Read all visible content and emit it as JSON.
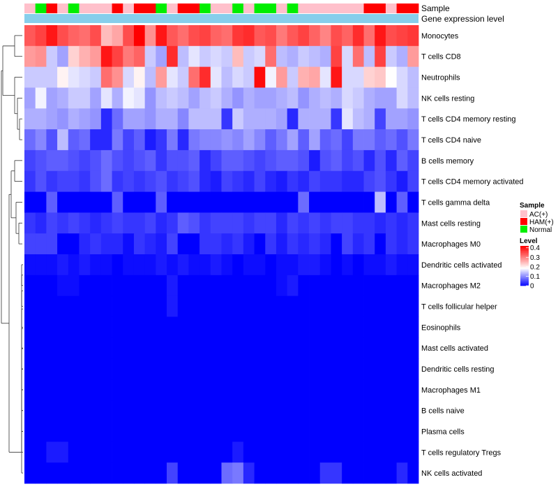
{
  "chart_data": {
    "type": "heatmap",
    "annotation_tracks": [
      {
        "name": "Sample",
        "values": [
          "AC(+)",
          "Normal",
          "HAM(+)",
          "AC(+)",
          "Normal",
          "AC(+)",
          "AC(+)",
          "AC(+)",
          "HAM(+)",
          "AC(+)",
          "HAM(+)",
          "HAM(+)",
          "Normal",
          "AC(+)",
          "HAM(+)",
          "HAM(+)",
          "Normal",
          "AC(+)",
          "AC(+)",
          "Normal",
          "AC(+)",
          "Normal",
          "Normal",
          "AC(+)",
          "Normal",
          "AC(+)",
          "AC(+)",
          "AC(+)",
          "AC(+)",
          "AC(+)",
          "AC(+)",
          "HAM(+)",
          "HAM(+)",
          "AC(+)",
          "HAM(+)",
          "HAM(+)"
        ]
      },
      {
        "name": "Gene expression level",
        "single_value": true
      }
    ],
    "rows": [
      "Monocytes",
      "T cells CD8",
      "Neutrophils",
      "NK cells resting",
      "T cells CD4 memory resting",
      "T cells CD4 naive",
      "B cells memory",
      "T cells CD4 memory activated",
      "T cells gamma delta",
      "Mast cells resting",
      "Macrophages M0",
      "Dendritic cells activated",
      "Macrophages M2",
      "T cells follicular helper",
      "Eosinophils",
      "Mast cells activated",
      "Dendritic cells resting",
      "Macrophages M1",
      "B cells naive",
      "Plasma cells",
      "T cells regulatory  Tregs",
      "NK cells activated"
    ],
    "n_columns": 36,
    "values": [
      [
        0.34,
        0.36,
        0.4,
        0.35,
        0.33,
        0.32,
        0.35,
        0.25,
        0.27,
        0.35,
        0.42,
        0.29,
        0.4,
        0.34,
        0.32,
        0.35,
        0.36,
        0.33,
        0.32,
        0.37,
        0.38,
        0.34,
        0.35,
        0.31,
        0.34,
        0.36,
        0.33,
        0.3,
        0.35,
        0.33,
        0.38,
        0.32,
        0.4,
        0.35,
        0.36,
        0.37
      ],
      [
        0.28,
        0.29,
        0.15,
        0.12,
        0.23,
        0.26,
        0.28,
        0.4,
        0.36,
        0.31,
        0.33,
        0.15,
        0.12,
        0.38,
        0.14,
        0.17,
        0.15,
        0.16,
        0.15,
        0.25,
        0.15,
        0.16,
        0.32,
        0.14,
        0.13,
        0.15,
        0.14,
        0.13,
        0.36,
        0.16,
        0.32,
        0.14,
        0.36,
        0.15,
        0.13,
        0.28
      ],
      [
        0.15,
        0.15,
        0.15,
        0.2,
        0.17,
        0.16,
        0.15,
        0.32,
        0.29,
        0.16,
        0.2,
        0.14,
        0.28,
        0.17,
        0.15,
        0.32,
        0.38,
        0.17,
        0.14,
        0.16,
        0.15,
        0.41,
        0.18,
        0.28,
        0.15,
        0.26,
        0.27,
        0.17,
        0.4,
        0.16,
        0.16,
        0.23,
        0.24,
        0.19,
        0.16,
        0.14
      ],
      [
        0.12,
        0.18,
        0.12,
        0.13,
        0.15,
        0.15,
        0.12,
        0.17,
        0.13,
        0.18,
        0.17,
        0.11,
        0.14,
        0.15,
        0.14,
        0.12,
        0.14,
        0.15,
        0.13,
        0.11,
        0.13,
        0.12,
        0.12,
        0.13,
        0.14,
        0.11,
        0.13,
        0.14,
        0.13,
        0.16,
        0.15,
        0.13,
        0.12,
        0.12,
        0.16,
        0.14
      ],
      [
        0.13,
        0.13,
        0.12,
        0.11,
        0.13,
        0.12,
        0.11,
        0.03,
        0.08,
        0.12,
        0.12,
        0.11,
        0.13,
        0.13,
        0.1,
        0.14,
        0.14,
        0.14,
        0.04,
        0.15,
        0.13,
        0.13,
        0.13,
        0.12,
        0.03,
        0.13,
        0.13,
        0.13,
        0.04,
        0.17,
        0.14,
        0.13,
        0.05,
        0.12,
        0.12,
        0.11
      ],
      [
        0.08,
        0.1,
        0.06,
        0.14,
        0.07,
        0.08,
        0.03,
        0.03,
        0.09,
        0.05,
        0.07,
        0.02,
        0.04,
        0.09,
        0.03,
        0.09,
        0.1,
        0.1,
        0.11,
        0.1,
        0.12,
        0.1,
        0.07,
        0.09,
        0.12,
        0.07,
        0.12,
        0.07,
        0.08,
        0.05,
        0.09,
        0.09,
        0.07,
        0.08,
        0.06,
        0.09
      ],
      [
        0.05,
        0.06,
        0.07,
        0.07,
        0.06,
        0.05,
        0.06,
        0.08,
        0.06,
        0.05,
        0.06,
        0.07,
        0.04,
        0.06,
        0.06,
        0.07,
        0.03,
        0.05,
        0.07,
        0.07,
        0.06,
        0.05,
        0.06,
        0.07,
        0.07,
        0.06,
        0.02,
        0.06,
        0.07,
        0.05,
        0.06,
        0.03,
        0.06,
        0.03,
        0.07,
        0.05
      ],
      [
        0.04,
        0.06,
        0.04,
        0.05,
        0.05,
        0.04,
        0.06,
        0.08,
        0.04,
        0.05,
        0.04,
        0.05,
        0.06,
        0.04,
        0.05,
        0.06,
        0.03,
        0.02,
        0.05,
        0.04,
        0.03,
        0.05,
        0.03,
        0.02,
        0.04,
        0.03,
        0.05,
        0.04,
        0.04,
        0.03,
        0.03,
        0.05,
        0.06,
        0.04,
        0.02,
        0.05
      ],
      [
        0.0,
        0.0,
        0.07,
        0.0,
        0.0,
        0.0,
        0.0,
        0.0,
        0.07,
        0.0,
        0.0,
        0.0,
        0.07,
        0.0,
        0.0,
        0.0,
        0.0,
        0.0,
        0.0,
        0.0,
        0.0,
        0.0,
        0.0,
        0.0,
        0.0,
        0.08,
        0.0,
        0.0,
        0.0,
        0.0,
        0.0,
        0.0,
        0.14,
        0.0,
        0.07,
        0.0
      ],
      [
        0.04,
        0.03,
        0.05,
        0.04,
        0.05,
        0.04,
        0.03,
        0.04,
        0.05,
        0.04,
        0.04,
        0.05,
        0.03,
        0.04,
        0.07,
        0.06,
        0.04,
        0.05,
        0.05,
        0.05,
        0.04,
        0.05,
        0.05,
        0.03,
        0.05,
        0.04,
        0.05,
        0.04,
        0.05,
        0.05,
        0.04,
        0.04,
        0.03,
        0.04,
        0.03,
        0.04
      ],
      [
        0.05,
        0.05,
        0.05,
        0.0,
        0.0,
        0.03,
        0.04,
        0.03,
        0.03,
        0.01,
        0.04,
        0.03,
        0.02,
        0.05,
        0.0,
        0.0,
        0.04,
        0.04,
        0.03,
        0.04,
        0.02,
        0.0,
        0.04,
        0.02,
        0.04,
        0.03,
        0.04,
        0.03,
        0.0,
        0.05,
        0.03,
        0.04,
        0.0,
        0.04,
        0.03,
        0.04
      ],
      [
        0.01,
        0.01,
        0.01,
        0.02,
        0.01,
        0.02,
        0.01,
        0.01,
        0.0,
        0.01,
        0.01,
        0.01,
        0.02,
        0.01,
        0.02,
        0.01,
        0.01,
        0.02,
        0.01,
        0.0,
        0.01,
        0.01,
        0.0,
        0.01,
        0.01,
        0.02,
        0.02,
        0.01,
        0.0,
        0.01,
        0.0,
        0.01,
        0.01,
        0.02,
        0.01,
        0.01
      ],
      [
        0.0,
        0.0,
        0.0,
        0.01,
        0.01,
        0.0,
        0.0,
        0.0,
        0.0,
        0.0,
        0.0,
        0.0,
        0.0,
        0.02,
        0.0,
        0.0,
        0.0,
        0.0,
        0.0,
        0.0,
        0.0,
        0.0,
        0.0,
        0.01,
        0.02,
        0.0,
        0.0,
        0.0,
        0.0,
        0.0,
        0.0,
        0.0,
        0.0,
        0.0,
        0.0,
        0.0
      ],
      [
        0.0,
        0.0,
        0.0,
        0.0,
        0.0,
        0.0,
        0.0,
        0.0,
        0.0,
        0.0,
        0.0,
        0.0,
        0.0,
        0.02,
        0.0,
        0.0,
        0.0,
        0.0,
        0.0,
        0.0,
        0.0,
        0.0,
        0.0,
        0.0,
        0.0,
        0.0,
        0.0,
        0.0,
        0.0,
        0.0,
        0.0,
        0.0,
        0.0,
        0.0,
        0.0,
        0.0
      ],
      [
        0.0,
        0.0,
        0.0,
        0.0,
        0.0,
        0.0,
        0.0,
        0.0,
        0.0,
        0.0,
        0.0,
        0.0,
        0.0,
        0.0,
        0.0,
        0.0,
        0.0,
        0.0,
        0.0,
        0.0,
        0.0,
        0.0,
        0.0,
        0.0,
        0.0,
        0.0,
        0.0,
        0.0,
        0.0,
        0.0,
        0.0,
        0.0,
        0.0,
        0.0,
        0.0,
        0.0
      ],
      [
        0.0,
        0.0,
        0.0,
        0.0,
        0.0,
        0.0,
        0.0,
        0.0,
        0.0,
        0.0,
        0.0,
        0.0,
        0.0,
        0.0,
        0.0,
        0.0,
        0.0,
        0.0,
        0.0,
        0.0,
        0.0,
        0.0,
        0.0,
        0.0,
        0.0,
        0.0,
        0.0,
        0.0,
        0.0,
        0.0,
        0.0,
        0.0,
        0.0,
        0.0,
        0.0,
        0.0
      ],
      [
        0.0,
        0.0,
        0.0,
        0.0,
        0.0,
        0.0,
        0.0,
        0.0,
        0.0,
        0.0,
        0.0,
        0.0,
        0.0,
        0.0,
        0.0,
        0.0,
        0.0,
        0.0,
        0.0,
        0.0,
        0.0,
        0.0,
        0.0,
        0.0,
        0.0,
        0.0,
        0.0,
        0.0,
        0.0,
        0.0,
        0.0,
        0.0,
        0.0,
        0.0,
        0.0,
        0.0
      ],
      [
        0.0,
        0.0,
        0.0,
        0.0,
        0.0,
        0.0,
        0.0,
        0.0,
        0.0,
        0.0,
        0.0,
        0.0,
        0.0,
        0.0,
        0.0,
        0.0,
        0.0,
        0.0,
        0.0,
        0.0,
        0.0,
        0.0,
        0.0,
        0.0,
        0.0,
        0.0,
        0.0,
        0.0,
        0.0,
        0.0,
        0.0,
        0.0,
        0.0,
        0.0,
        0.0,
        0.0
      ],
      [
        0.0,
        0.0,
        0.0,
        0.0,
        0.0,
        0.0,
        0.0,
        0.0,
        0.0,
        0.0,
        0.0,
        0.0,
        0.0,
        0.0,
        0.0,
        0.0,
        0.0,
        0.0,
        0.0,
        0.0,
        0.0,
        0.0,
        0.0,
        0.0,
        0.0,
        0.0,
        0.0,
        0.0,
        0.0,
        0.0,
        0.0,
        0.0,
        0.0,
        0.0,
        0.0,
        0.0
      ],
      [
        0.0,
        0.0,
        0.0,
        0.0,
        0.0,
        0.0,
        0.0,
        0.0,
        0.0,
        0.0,
        0.0,
        0.0,
        0.0,
        0.0,
        0.0,
        0.0,
        0.0,
        0.0,
        0.0,
        0.0,
        0.0,
        0.0,
        0.0,
        0.0,
        0.0,
        0.0,
        0.0,
        0.0,
        0.0,
        0.0,
        0.0,
        0.0,
        0.0,
        0.0,
        0.0,
        0.0
      ],
      [
        0.0,
        0.0,
        0.02,
        0.02,
        0.0,
        0.0,
        0.0,
        0.0,
        0.0,
        0.0,
        0.0,
        0.0,
        0.0,
        0.0,
        0.0,
        0.0,
        0.0,
        0.0,
        0.0,
        0.02,
        0.0,
        0.0,
        0.0,
        0.0,
        0.0,
        0.0,
        0.0,
        0.0,
        0.0,
        0.0,
        0.0,
        0.0,
        0.0,
        0.0,
        0.0,
        0.0
      ],
      [
        0.0,
        0.0,
        0.0,
        0.0,
        0.0,
        0.0,
        0.0,
        0.0,
        0.0,
        0.0,
        0.0,
        0.0,
        0.0,
        0.05,
        0.0,
        0.0,
        0.0,
        0.0,
        0.08,
        0.09,
        0.03,
        0.0,
        0.0,
        0.0,
        0.0,
        0.0,
        0.0,
        0.04,
        0.04,
        0.0,
        0.0,
        0.0,
        0.0,
        0.0,
        0.03,
        0.0
      ]
    ],
    "legend": {
      "sample_title": "Sample",
      "sample_items": [
        {
          "label": "AC(+)",
          "color": "#ffc0cb"
        },
        {
          "label": "HAM(+)",
          "color": "#ff0000"
        },
        {
          "label": "Normal",
          "color": "#00ee00"
        }
      ],
      "level_title": "Level",
      "level_ticks": [
        "0.4",
        "0.3",
        "0.2",
        "0.1",
        "0"
      ],
      "level_tick_values": [
        0.4,
        0.3,
        0.2,
        0.1,
        0
      ],
      "range": [
        0,
        0.42
      ]
    },
    "expression_track_color": "#87ceeb"
  }
}
